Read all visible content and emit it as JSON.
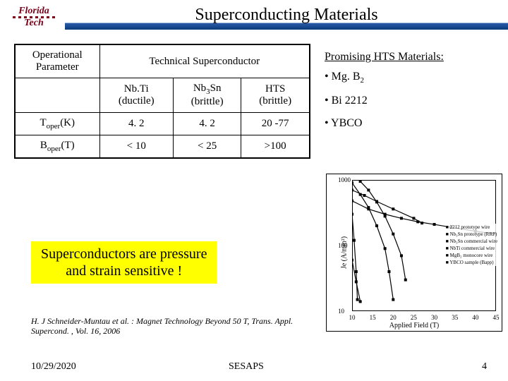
{
  "logo": {
    "line1": "Florida",
    "line2": "Tech"
  },
  "title": "Superconducting Materials",
  "table": {
    "header_param": "Operational Parameter",
    "header_tech": "Technical  Superconductor",
    "cols": [
      {
        "l1": "Nb.Ti",
        "l2": "(ductile)"
      },
      {
        "l1": "Nb",
        "sub": "3",
        "l1b": "Sn",
        "l2": "(brittle)"
      },
      {
        "l1": "HTS",
        "l2": "(brittle)"
      }
    ],
    "rows": [
      {
        "param_pre": "T",
        "param_sub": "oper",
        "param_post": "(K)",
        "v": [
          "4. 2",
          "4. 2",
          "20 -77"
        ]
      },
      {
        "param_pre": "B",
        "param_sub": "oper",
        "param_post": "(T)",
        "v": [
          "< 10",
          "< 25",
          ">100"
        ]
      }
    ]
  },
  "promising": {
    "heading": "Promising HTS Materials:",
    "items": [
      {
        "pre": "• Mg. B",
        "sub": "2"
      },
      {
        "pre": "• Bi 2212"
      },
      {
        "pre": "• YBCO"
      }
    ]
  },
  "highlight": {
    "l1": "Superconductors are pressure",
    "l2": "and strain sensitive !"
  },
  "reference": "H. J Schneider-Muntau et al. : Magnet Technology Beyond 50 T, Trans. Appl. Supercond. , Vol. 16, 2006",
  "chart": {
    "type": "line-log",
    "ylabel": "Je (A/mm²)",
    "xlabel": "Applied Field (T)",
    "xlim": [
      10,
      45
    ],
    "xtick_step": 5,
    "yticks": [
      10,
      100,
      1000
    ],
    "background_color": "#ffffff",
    "axis_color": "#000000",
    "legend": [
      "2212 prototype wire",
      "Nb₃Sn prototype (RRP)",
      "Nb₃Sn commercial wire",
      "NbTi commercial wire",
      "MgB₂ monocore wire",
      "YBCO sample (Bapp)"
    ],
    "series": [
      {
        "name": "2212",
        "color": "#000000",
        "marker": "square",
        "points": [
          [
            10,
            480
          ],
          [
            14,
            360
          ],
          [
            18,
            300
          ],
          [
            22,
            260
          ],
          [
            26,
            230
          ],
          [
            30,
            210
          ],
          [
            34,
            190
          ],
          [
            40,
            165
          ],
          [
            45,
            150
          ]
        ]
      },
      {
        "name": "Nb3Sn-proto",
        "color": "#000000",
        "marker": "square",
        "points": [
          [
            10,
            1200
          ],
          [
            12,
            950
          ],
          [
            14,
            700
          ],
          [
            16,
            460
          ],
          [
            18,
            280
          ],
          [
            20,
            150
          ],
          [
            22,
            70
          ],
          [
            23,
            30
          ]
        ]
      },
      {
        "name": "Nb3Sn-comm",
        "color": "#000000",
        "marker": "square",
        "points": [
          [
            10,
            900
          ],
          [
            12,
            600
          ],
          [
            14,
            380
          ],
          [
            16,
            200
          ],
          [
            18,
            90
          ],
          [
            19,
            40
          ],
          [
            20,
            15
          ]
        ]
      },
      {
        "name": "NbTi",
        "color": "#000000",
        "marker": "triangle",
        "points": [
          [
            10,
            300
          ],
          [
            10.5,
            120
          ],
          [
            11,
            40
          ],
          [
            11.3,
            15
          ]
        ]
      },
      {
        "name": "MgB2",
        "color": "#000000",
        "marker": "diamond",
        "points": [
          [
            10,
            60
          ],
          [
            11,
            28
          ],
          [
            12,
            14
          ]
        ]
      },
      {
        "name": "YBCO",
        "color": "#000000",
        "marker": "diamond",
        "points": [
          [
            10,
            700
          ],
          [
            13,
            580
          ],
          [
            16,
            470
          ],
          [
            20,
            360
          ],
          [
            25,
            260
          ],
          [
            27,
            220
          ]
        ]
      }
    ]
  },
  "footer": {
    "date": "10/29/2020",
    "mid": "SESAPS",
    "page": "4"
  }
}
